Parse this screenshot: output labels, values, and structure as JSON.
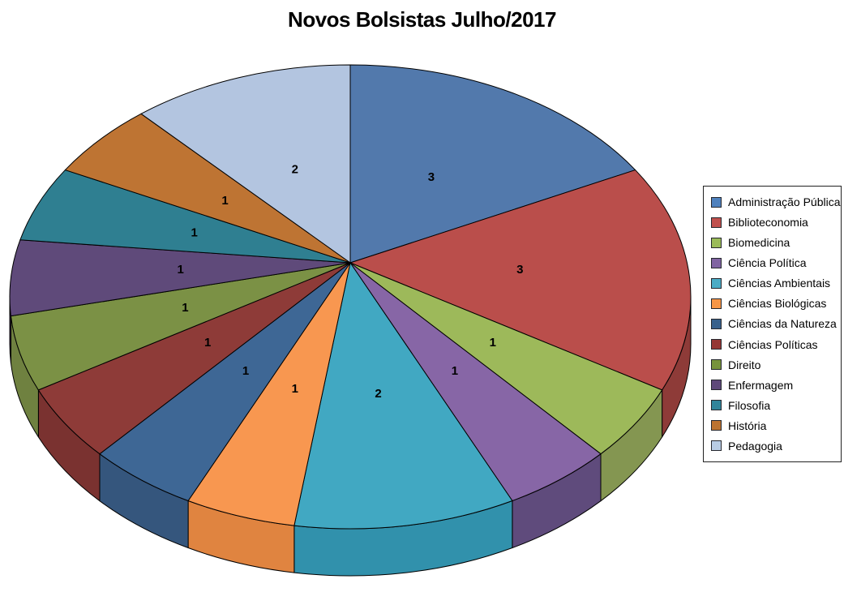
{
  "title": "Novos Bolsistas Julho/2017",
  "chart_data": {
    "type": "pie",
    "style": "3d-exploded-none",
    "title": "Novos Bolsistas Julho/2017",
    "total": 19,
    "start_angle_deg": 0,
    "direction": "clockwise",
    "legend_position": "right",
    "data_labels": "values",
    "label_color": "#000000",
    "outline_color": "#000000",
    "slices": [
      {
        "label": "Administração Pública",
        "value": 3,
        "color": "#5279AC",
        "side_color": "#3D5A80",
        "legend_color": "#4F81BD"
      },
      {
        "label": "Biblioteconomia",
        "value": 3,
        "color": "#BA4E4B",
        "side_color": "#8E3B38",
        "legend_color": "#C0504D"
      },
      {
        "label": "Biomedicina",
        "value": 1,
        "color": "#9DB95A",
        "side_color": "#849651",
        "legend_color": "#9BBB59"
      },
      {
        "label": "Ciência Política",
        "value": 1,
        "color": "#8766A6",
        "side_color": "#5F4B7C",
        "legend_color": "#8064A2"
      },
      {
        "label": "Ciências Ambientais",
        "value": 2,
        "color": "#41A8C2",
        "side_color": "#3191AC",
        "legend_color": "#4BACC6"
      },
      {
        "label": "Ciências Biológicas",
        "value": 1,
        "color": "#F89750",
        "side_color": "#E08440",
        "legend_color": "#F79646"
      },
      {
        "label": "Ciências da Natureza",
        "value": 1,
        "color": "#3E6795",
        "side_color": "#35567D",
        "legend_color": "#38618C"
      },
      {
        "label": "Ciências Políticas",
        "value": 1,
        "color": "#8E3B38",
        "side_color": "#7A3230",
        "legend_color": "#953735"
      },
      {
        "label": "Direito",
        "value": 1,
        "color": "#7B9145",
        "side_color": "#6F8140",
        "legend_color": "#77933C"
      },
      {
        "label": "Enfermagem",
        "value": 1,
        "color": "#5F4A7A",
        "side_color": "#4A3A5E",
        "legend_color": "#5F497A"
      },
      {
        "label": "Filosofia",
        "value": 1,
        "color": "#2F7F91",
        "side_color": "#26616F",
        "legend_color": "#31859B"
      },
      {
        "label": "História",
        "value": 1,
        "color": "#BE7433",
        "side_color": "#8F5726",
        "legend_color": "#BC7331"
      },
      {
        "label": "Pedagogia",
        "value": 2,
        "color": "#B3C5E0",
        "side_color": "#8FA5C4",
        "legend_color": "#B8CCE4"
      }
    ]
  }
}
